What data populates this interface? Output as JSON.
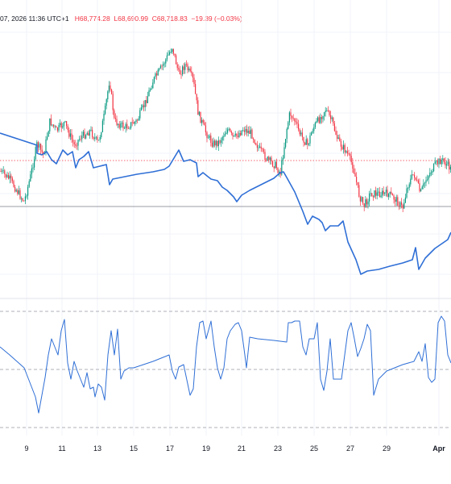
{
  "header": {
    "date_fragment": "07, 2026 11:36 UTC+1",
    "high": "68,774.28",
    "low": "68,690.99",
    "close": "68,718.83",
    "change": "−19.39 (−0.03%)",
    "high_prefix": "H",
    "low_prefix": "L",
    "close_prefix": "C"
  },
  "chart_data": [
    {
      "type": "candlestick",
      "title": "",
      "x_axis_labels": [
        "9",
        "11",
        "13",
        "15",
        "17",
        "19",
        "21",
        "23",
        "25",
        "27",
        "29",
        "Apr"
      ],
      "overlay_series": [
        {
          "type": "line",
          "color": "#2f6fd6"
        }
      ],
      "price_line_color": "#f23645",
      "up_color": "#089981",
      "down_color": "#f23645"
    },
    {
      "type": "line",
      "title": "",
      "series": [
        {
          "color": "#2f6fd6"
        }
      ],
      "reference_lines": "dashed at upper, middle, lower levels"
    }
  ]
}
